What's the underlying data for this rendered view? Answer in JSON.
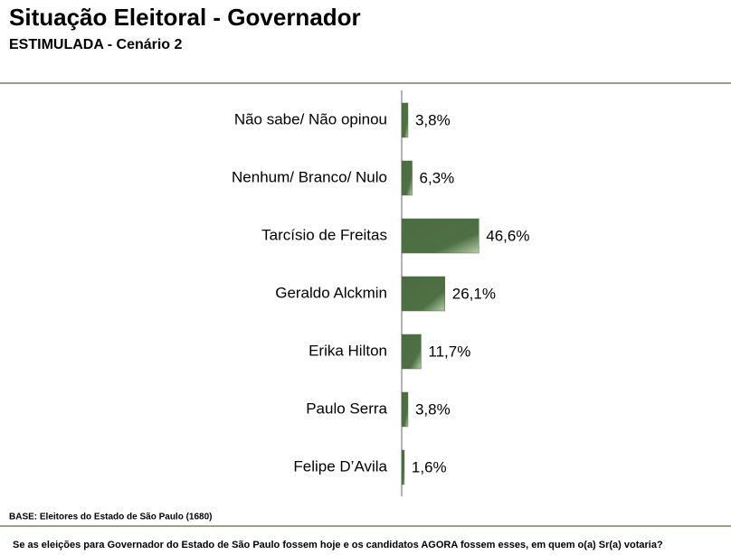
{
  "chart_data": {
    "type": "bar",
    "orientation": "horizontal",
    "title": "Situação Eleitoral - Governador",
    "subtitle": "ESTIMULADA - Cenário 2",
    "categories": [
      "Não sabe/ Não opinou",
      "Nenhum/ Branco/ Nulo",
      "Tarcísio de Freitas",
      "Geraldo Alckmin",
      "Erika Hilton",
      "Paulo Serra",
      "Felipe D’Avila"
    ],
    "values": [
      3.8,
      6.3,
      46.6,
      26.1,
      11.7,
      3.8,
      1.6
    ],
    "value_labels": [
      "3,8%",
      "6,3%",
      "46,6%",
      "26,1%",
      "11,7%",
      "3,8%",
      "1,6%"
    ],
    "color": "#4b6b41",
    "note": "BASE: Eleitores do Estado de São Paulo (1680)",
    "question": "Se as eleições para Governador do Estado de São Paulo fossem hoje e os candidatos AGORA fossem esses, em quem o(a) Sr(a) votaria?"
  }
}
